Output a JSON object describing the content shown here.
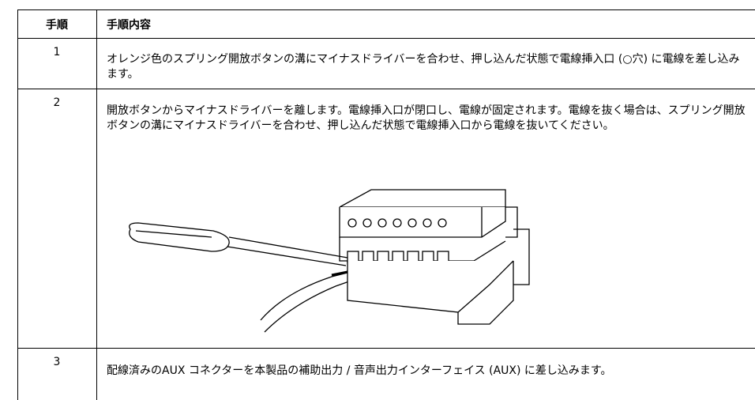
{
  "table": {
    "header": [
      "手順",
      "手順内容"
    ],
    "rows": [
      [
        "1",
        "オレンジ色のスプリング開放ボタンの溝にマイナスドライバーを合わせ、押し込んだ状態で電線挿入口 (○穴) に電線を差し込みます。"
      ],
      [
        "2",
        "開放ボタンからマイナスドライバーを離します。電線挿入口が閉口し、電線が固定されます。電線を抜く場合は、スプリング開放ボタンの溝にマイナスドライバーを合わせ、押し込んだ状態で電線挿入口から電線を抜いてください。"
      ],
      [
        "3",
        "配線済みのAUX コネクターを本製品の補助出力 / 音声出力インターフェイス (AUX) に差し込みます。"
      ]
    ]
  }
}
